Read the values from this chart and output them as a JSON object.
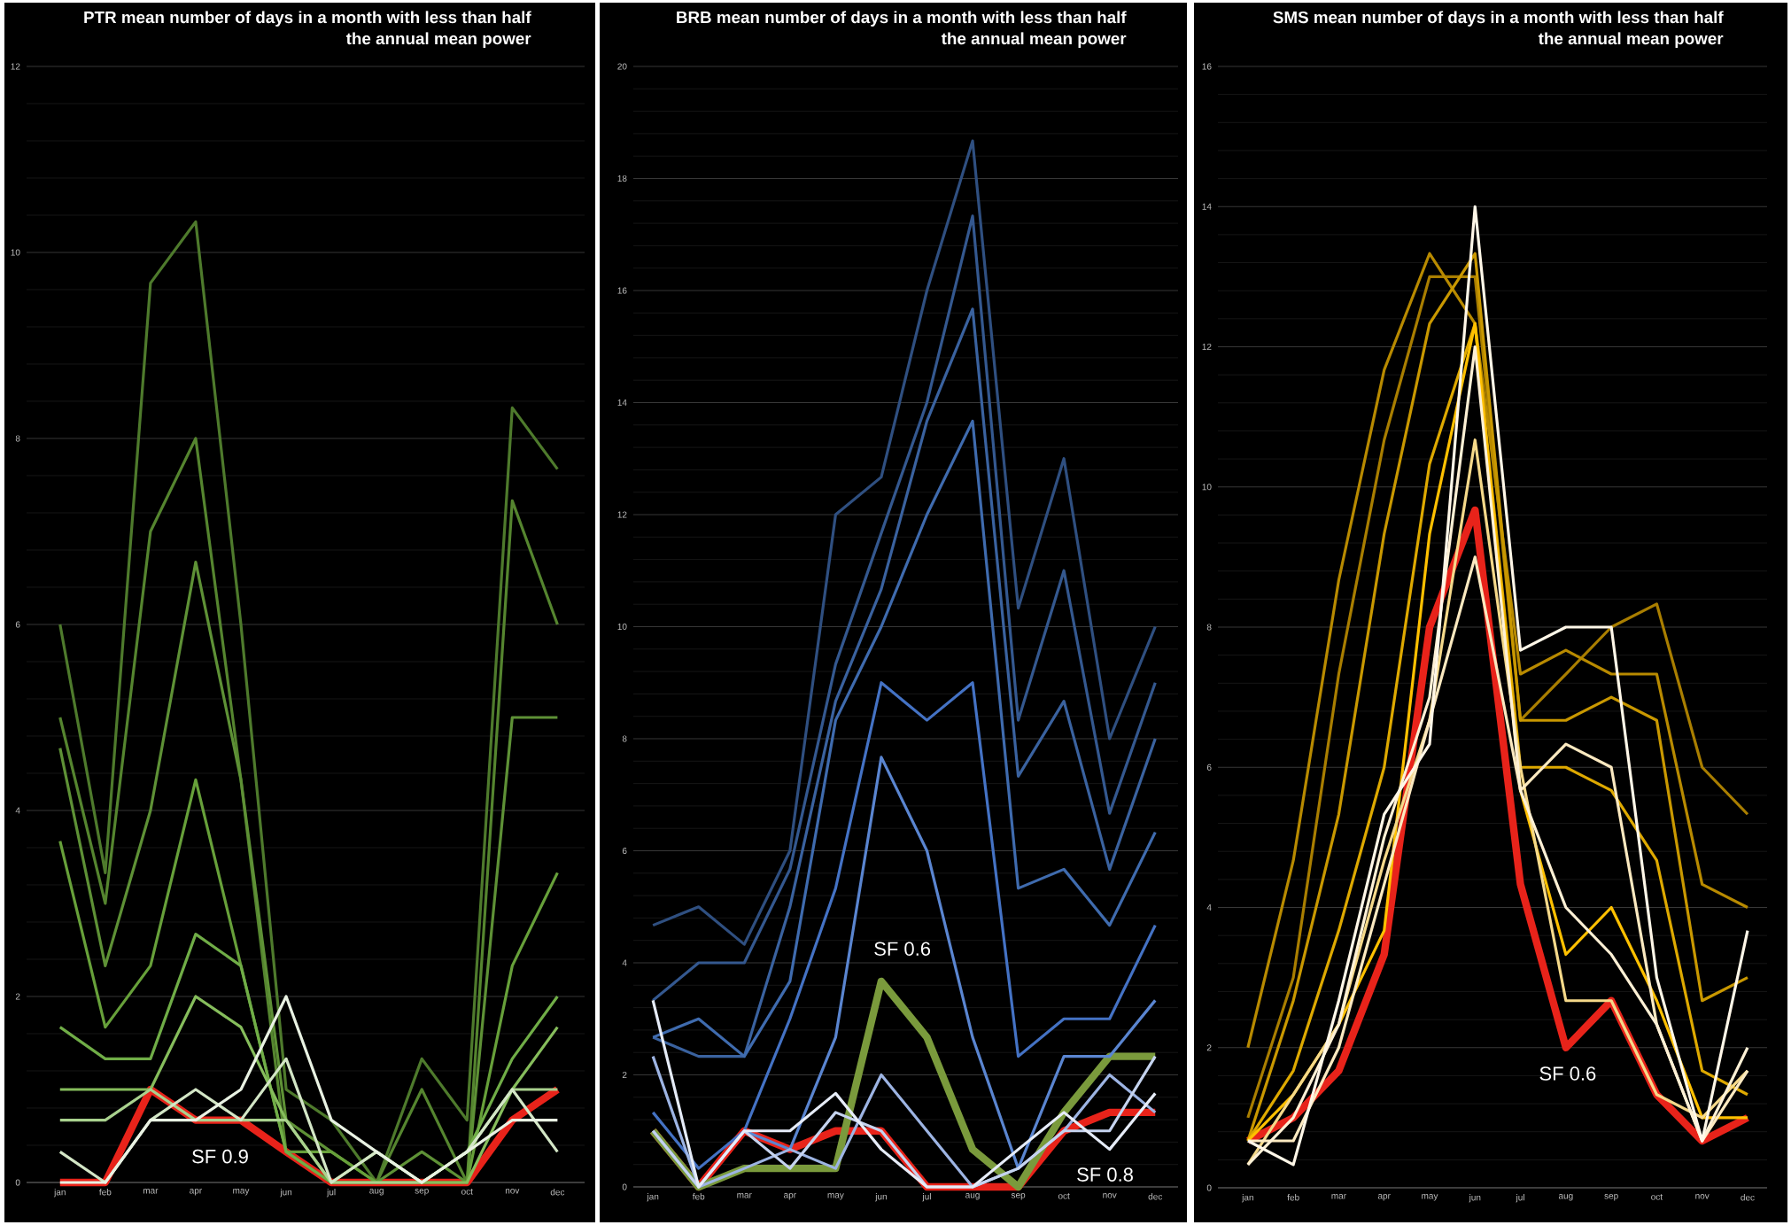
{
  "chart_data": [
    {
      "type": "line",
      "title": "PTR mean number of days in a month with less than half the annual mean power",
      "categories": [
        "jan",
        "feb",
        "mar",
        "apr",
        "may",
        "jun",
        "jul",
        "aug",
        "sep",
        "oct",
        "nov",
        "dec"
      ],
      "ylim": [
        0,
        12
      ],
      "yticks": [
        0,
        2,
        4,
        6,
        8,
        10,
        12
      ],
      "grid": "y",
      "annotations": [
        "SF 0.9"
      ],
      "series": [
        {
          "color": "#e8231a",
          "values": [
            0,
            0,
            1,
            0.67,
            0.67,
            0.33,
            0,
            0,
            0,
            0,
            0.67,
            1
          ]
        },
        {
          "color": "#4e7a2c",
          "values": [
            6,
            3.33,
            9.67,
            10.33,
            6,
            1,
            0.67,
            0,
            1.33,
            0.67,
            8.33,
            7.67
          ]
        },
        {
          "color": "#55852f",
          "values": [
            5,
            3,
            7,
            8,
            4.33,
            0.33,
            0,
            0,
            1,
            0,
            7.33,
            6
          ]
        },
        {
          "color": "#5e9136",
          "values": [
            4.67,
            2.33,
            4,
            6.67,
            4.33,
            0.67,
            0.33,
            0,
            0.33,
            0,
            5,
            5
          ]
        },
        {
          "color": "#67a03a",
          "values": [
            3.67,
            1.67,
            2.33,
            4.33,
            2.33,
            0.33,
            0.33,
            0,
            0,
            0,
            2.33,
            3.33
          ]
        },
        {
          "color": "#70ad47",
          "values": [
            1.67,
            1.33,
            1.33,
            2.67,
            2.33,
            0.33,
            0,
            0,
            0,
            0.33,
            1.33,
            2
          ]
        },
        {
          "color": "#86bd5c",
          "values": [
            1,
            1,
            1,
            2,
            1.67,
            0.67,
            0,
            0.33,
            0,
            0,
            1,
            1.67
          ]
        },
        {
          "color": "#a9d18e",
          "values": [
            0.67,
            0.67,
            1,
            0.67,
            0.67,
            0.67,
            0,
            0,
            0,
            0.33,
            1,
            1
          ]
        },
        {
          "color": "#d3e6c6",
          "values": [
            0.33,
            0,
            0.67,
            1,
            0.67,
            1.33,
            0,
            0.33,
            0,
            0.33,
            1,
            0.33
          ]
        },
        {
          "color": "#e9f2e3",
          "values": [
            0,
            0,
            0.67,
            0.67,
            1,
            2,
            0.67,
            0.33,
            0,
            0.33,
            0.67,
            0.67
          ]
        }
      ]
    },
    {
      "type": "line",
      "title": "BRB mean number of days in a month with less than half the annual mean power",
      "categories": [
        "jan",
        "feb",
        "mar",
        "apr",
        "may",
        "jun",
        "jul",
        "aug",
        "sep",
        "oct",
        "nov",
        "dec"
      ],
      "ylim": [
        0,
        20
      ],
      "yticks": [
        0,
        2,
        4,
        6,
        8,
        10,
        12,
        14,
        16,
        18,
        20
      ],
      "grid": "y",
      "annotations": [
        "SF 0.6",
        "SF 0.8"
      ],
      "series": [
        {
          "color": "#e8231a",
          "values": [
            1,
            0,
            1,
            0.67,
            1,
            1,
            0,
            0,
            0,
            1,
            1.33,
            1.33
          ]
        },
        {
          "color": "#7a9a3c",
          "values": [
            1,
            0,
            0.33,
            0.33,
            0.33,
            3.67,
            2.67,
            0.67,
            0,
            1.33,
            2.33,
            2.33
          ]
        },
        {
          "color": "#2f4f80",
          "values": [
            4.67,
            5,
            4.33,
            6,
            12,
            12.67,
            16,
            18.67,
            10.33,
            13,
            8,
            10
          ]
        },
        {
          "color": "#34588f",
          "values": [
            3.33,
            4,
            4,
            5.67,
            9.33,
            11.67,
            14,
            17.33,
            8.33,
            11,
            6.67,
            9
          ]
        },
        {
          "color": "#3a629f",
          "values": [
            2.67,
            2.33,
            2.33,
            5,
            8.67,
            10.67,
            13.67,
            15.67,
            7.33,
            8.67,
            5.67,
            8
          ]
        },
        {
          "color": "#3f6bae",
          "values": [
            2.67,
            3,
            2.33,
            3.67,
            8.33,
            10,
            12,
            13.67,
            5.33,
            5.67,
            4.67,
            6.33
          ]
        },
        {
          "color": "#4472c4",
          "values": [
            1.33,
            0.33,
            1,
            3,
            5.33,
            9,
            8.33,
            9,
            2.33,
            3,
            3,
            4.67
          ]
        },
        {
          "color": "#5a85d0",
          "values": [
            1,
            0,
            1,
            0.67,
            2.67,
            7.67,
            6,
            2.67,
            0.33,
            2.33,
            2.33,
            3.33
          ]
        },
        {
          "color": "#9db4e3",
          "values": [
            2.33,
            0,
            0.33,
            0.67,
            0.33,
            2,
            1,
            0,
            0.33,
            1,
            2,
            1.33
          ]
        },
        {
          "color": "#c5d3ef",
          "values": [
            1,
            0,
            1,
            0.33,
            1.33,
            1,
            0,
            0,
            0.33,
            1,
            1,
            2.33
          ]
        },
        {
          "color": "#e6ecf8",
          "values": [
            3.33,
            0,
            1,
            1,
            1.67,
            0.67,
            0,
            0,
            0.67,
            1.33,
            0.67,
            1.67
          ]
        }
      ]
    },
    {
      "type": "line",
      "title": "SMS mean number of days in a month with less than half the annual mean power",
      "categories": [
        "jan",
        "feb",
        "mar",
        "apr",
        "may",
        "jun",
        "jul",
        "aug",
        "sep",
        "oct",
        "nov",
        "dec"
      ],
      "ylim": [
        0,
        16
      ],
      "yticks": [
        0,
        2,
        4,
        6,
        8,
        10,
        12,
        14,
        16
      ],
      "grid": "y",
      "annotations": [
        "SF 0.6"
      ],
      "series": [
        {
          "color": "#e8231a",
          "values": [
            0.67,
            1,
            1.67,
            3.33,
            8,
            9.67,
            4.33,
            2,
            2.67,
            1.33,
            0.67,
            1
          ]
        },
        {
          "color": "#a97e00",
          "values": [
            1,
            3,
            7.33,
            10.67,
            13,
            13,
            6.67,
            7.33,
            8,
            8.33,
            6,
            5.33
          ]
        },
        {
          "color": "#b88a00",
          "values": [
            2,
            4.67,
            8.67,
            11.67,
            13.33,
            12.33,
            7.33,
            7.67,
            7.33,
            7.33,
            4.33,
            4
          ]
        },
        {
          "color": "#c99800",
          "values": [
            0.67,
            2.67,
            5.33,
            9.33,
            12.33,
            13.33,
            6.67,
            6.67,
            7,
            6.67,
            2.67,
            3
          ]
        },
        {
          "color": "#dea900",
          "values": [
            0.67,
            1.67,
            3.67,
            6,
            10.33,
            12.33,
            6,
            6,
            5.67,
            4.67,
            1.67,
            1.33
          ]
        },
        {
          "color": "#ffc000",
          "values": [
            0.67,
            1.33,
            2.33,
            3.67,
            9.33,
            12.33,
            5.67,
            3.33,
            4,
            2.67,
            1,
            1
          ]
        },
        {
          "color": "#f5d98a",
          "values": [
            0.33,
            1.33,
            2.33,
            4.67,
            6.67,
            10.67,
            6,
            2.67,
            2.67,
            1.33,
            1,
            1.67
          ]
        },
        {
          "color": "#fbe9c0",
          "values": [
            0.67,
            0.67,
            2,
            4.33,
            6.67,
            9,
            5.67,
            6.33,
            6,
            2.33,
            0.67,
            1.67
          ]
        },
        {
          "color": "#fdf0d5",
          "values": [
            0.33,
            1,
            2.33,
            5,
            7,
            12,
            5.67,
            4,
            3.33,
            2.33,
            0.67,
            2
          ]
        },
        {
          "color": "#fff7e8",
          "values": [
            0.67,
            0.33,
            2.67,
            5.33,
            6.33,
            14,
            7.67,
            8,
            8,
            3,
            0.67,
            3.67
          ]
        }
      ]
    }
  ]
}
